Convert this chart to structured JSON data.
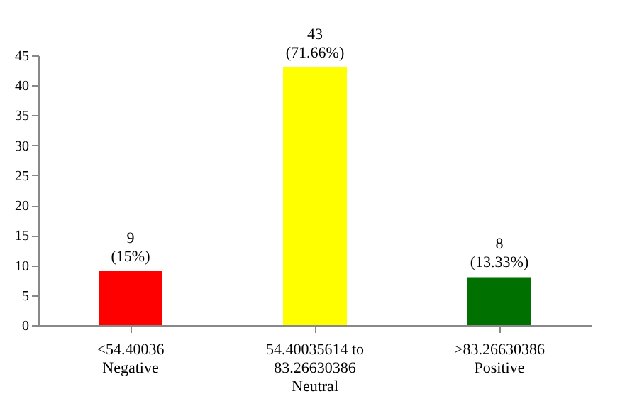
{
  "chart_data": {
    "type": "bar",
    "categories": [
      "<54.40036\nNegative",
      "54.40035614 to\n83.26630386\nNeutral",
      ">83.26630386\nPositive"
    ],
    "values": [
      9,
      43,
      8
    ],
    "colors": [
      "#ff0000",
      "#ffff00",
      "#007000"
    ],
    "value_labels": [
      "9\n(15%)",
      "43\n(71.66%)",
      "8\n(13.33%)"
    ],
    "ylim": [
      0,
      45
    ],
    "yticks": [
      0,
      5,
      10,
      15,
      20,
      25,
      30,
      35,
      40,
      45
    ],
    "grid": false
  }
}
